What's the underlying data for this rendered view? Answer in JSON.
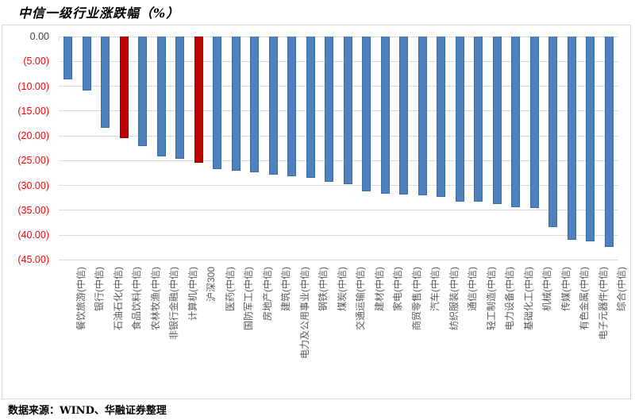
{
  "title": "中信一级行业涨跌幅（%）",
  "footer": "数据来源：WIND、华融证券整理",
  "colors": {
    "bar_blue": "#4f81bd",
    "bar_blue_border": "#3b6ca4",
    "bar_red": "#c00000",
    "bar_red_border": "#950303",
    "gridline": "#d9d9d9",
    "chart_border": "#d9d9d9",
    "y_label_zero": "#404040",
    "y_label_negative": "#ff0000",
    "category_label": "#595959"
  },
  "chart_data": {
    "type": "bar",
    "title": "中信一级行业涨跌幅（%）",
    "xlabel": "",
    "ylabel": "",
    "ylim": [
      -45,
      0
    ],
    "ytick_interval": 5,
    "ytick_labels": [
      "0.00",
      "(5.00)",
      "(10.00)",
      "(15.00)",
      "(20.00)",
      "(25.00)",
      "(30.00)",
      "(35.00)",
      "(40.00)",
      "(45.00)"
    ],
    "grid": true,
    "legend": false,
    "categories": [
      "餐饮旅游(中信)",
      "银行(中信)",
      "石油石化(中信)",
      "食品饮料(中信)",
      "农林牧渔(中信)",
      "非银行金融(中信)",
      "计算机(中信)",
      "沪深300",
      "医药(中信)",
      "国防军工(中信)",
      "房地产(中信)",
      "建筑(中信)",
      "电力及公用事业(中信)",
      "钢铁(中信)",
      "煤炭(中信)",
      "交通运输(中信)",
      "建材(中信)",
      "家电(中信)",
      "商贸零售(中信)",
      "汽车(中信)",
      "纺织服装(中信)",
      "通信(中信)",
      "轻工制造(中信)",
      "电力设备(中信)",
      "基础化工(中信)",
      "机械(中信)",
      "传媒(中信)",
      "有色金属(中信)",
      "电子元器件(中信)",
      "综合(中信)"
    ],
    "values": [
      -8.7,
      -10.8,
      -18.4,
      -20.4,
      -22.1,
      -24.2,
      -24.6,
      -25.4,
      -26.7,
      -27.1,
      -27.3,
      -27.9,
      -28.1,
      -28.4,
      -29.3,
      -29.7,
      -31.2,
      -31.6,
      -31.8,
      -32.0,
      -32.3,
      -33.2,
      -33.3,
      -33.8,
      -34.4,
      -34.5,
      -38.4,
      -40.9,
      -41.3,
      -42.4
    ],
    "highlight_indexes": [
      3,
      7
    ],
    "highlight_color_meaning": "red bars: 食品饮料(中信) and 沪深300"
  }
}
